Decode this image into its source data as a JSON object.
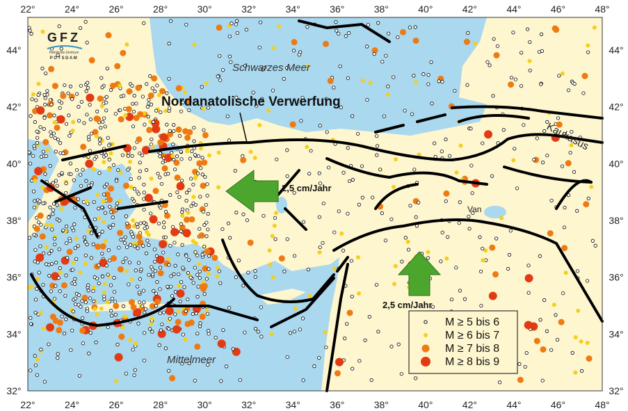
{
  "map": {
    "x_ticks": [
      22,
      24,
      26,
      28,
      30,
      32,
      34,
      36,
      38,
      40,
      42,
      44,
      46,
      48
    ],
    "y_ticks": [
      32,
      34,
      36,
      38,
      40,
      42,
      44
    ],
    "degree_symbol": "°",
    "lon_range": [
      22,
      48
    ],
    "lat_range": [
      32,
      45.15
    ],
    "colors": {
      "land": "#fdf6cf",
      "sea": "#a9d8ef",
      "fault": "#000000",
      "arrow": "#4ca62e",
      "m5": "#ffffff",
      "m6": "#f5cf1c",
      "m7": "#ee7a12",
      "m8": "#e23b14"
    },
    "labels": {
      "black_sea": "Schwarzes Meer",
      "mediterranean": "Mittelmeer",
      "fault": "Nordanatolische Verwerfung",
      "caucasus": "Kaukasus",
      "van": "Van",
      "rate_west": "2,5 cm/Jahr",
      "rate_north": "2,5 cm/Jahr"
    },
    "logo": {
      "name": "GFZ",
      "line1": "Helmholtz-Zentrum",
      "line2": "POTSDAM"
    },
    "legend": [
      {
        "label": "M ≥ 5 bis 6",
        "color": "#ffffff"
      },
      {
        "label": "M ≥ 6 bis 7",
        "color": "#f5cf1c"
      },
      {
        "label": "M ≥ 7 bis 8",
        "color": "#ee7a12"
      },
      {
        "label": "M ≥ 8 bis 9",
        "color": "#e23b14"
      }
    ]
  }
}
